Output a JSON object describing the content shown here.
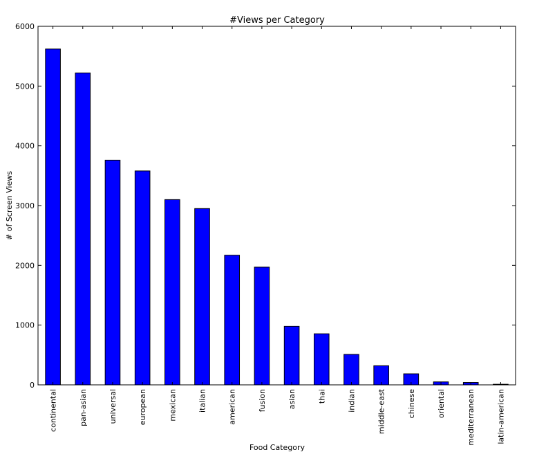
{
  "chart_data": {
    "type": "bar",
    "title": "#Views per Category",
    "xlabel": "Food Category",
    "ylabel": "# of Screen Views",
    "ylim": [
      0,
      6000
    ],
    "yticks": [
      0,
      1000,
      2000,
      3000,
      4000,
      5000,
      6000
    ],
    "grid": false,
    "bar_color": "#0000ff",
    "categories": [
      "continental",
      "pan-asian",
      "universal",
      "european",
      "mexican",
      "italian",
      "american",
      "fusion",
      "asian",
      "thai",
      "indian",
      "middle-east",
      "chinese",
      "oriental",
      "mediterranean",
      "latin-american"
    ],
    "values": [
      5620,
      5220,
      3760,
      3580,
      3100,
      2950,
      2170,
      1970,
      980,
      855,
      510,
      320,
      185,
      50,
      40,
      10
    ]
  }
}
